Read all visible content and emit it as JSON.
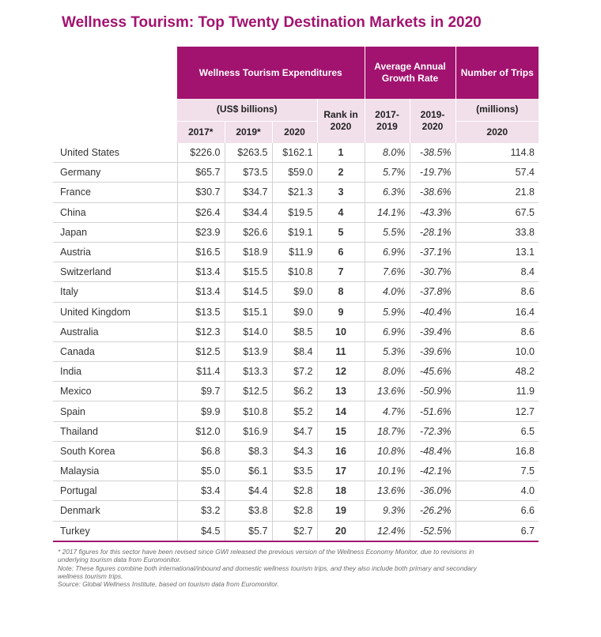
{
  "title": "Wellness Tourism: Top Twenty Destination Markets in 2020",
  "headers": {
    "expenditures": "Wellness Tourism Expenditures",
    "growth": "Average Annual Growth Rate",
    "trips": "Number of Trips",
    "usd_billions": "(US$ billions)",
    "rank": "Rank in 2020",
    "millions": "(millions)",
    "y2017": "2017*",
    "y2019": "2019*",
    "y2020": "2020",
    "g1719": "2017-2019",
    "g1920": "2019-2020",
    "trips2020": "2020"
  },
  "rows": [
    {
      "country": "United States",
      "e2017": "$226.0",
      "e2019": "$263.5",
      "e2020": "$162.1",
      "rank": "1",
      "g1719": "8.0%",
      "g1920": "-38.5%",
      "trips": "114.8"
    },
    {
      "country": "Germany",
      "e2017": "$65.7",
      "e2019": "$73.5",
      "e2020": "$59.0",
      "rank": "2",
      "g1719": "5.7%",
      "g1920": "-19.7%",
      "trips": "57.4"
    },
    {
      "country": "France",
      "e2017": "$30.7",
      "e2019": "$34.7",
      "e2020": "$21.3",
      "rank": "3",
      "g1719": "6.3%",
      "g1920": "-38.6%",
      "trips": "21.8"
    },
    {
      "country": "China",
      "e2017": "$26.4",
      "e2019": "$34.4",
      "e2020": "$19.5",
      "rank": "4",
      "g1719": "14.1%",
      "g1920": "-43.3%",
      "trips": "67.5"
    },
    {
      "country": "Japan",
      "e2017": "$23.9",
      "e2019": "$26.6",
      "e2020": "$19.1",
      "rank": "5",
      "g1719": "5.5%",
      "g1920": "-28.1%",
      "trips": "33.8"
    },
    {
      "country": "Austria",
      "e2017": "$16.5",
      "e2019": "$18.9",
      "e2020": "$11.9",
      "rank": "6",
      "g1719": "6.9%",
      "g1920": "-37.1%",
      "trips": "13.1"
    },
    {
      "country": "Switzerland",
      "e2017": "$13.4",
      "e2019": "$15.5",
      "e2020": "$10.8",
      "rank": "7",
      "g1719": "7.6%",
      "g1920": "-30.7%",
      "trips": "8.4"
    },
    {
      "country": "Italy",
      "e2017": "$13.4",
      "e2019": "$14.5",
      "e2020": "$9.0",
      "rank": "8",
      "g1719": "4.0%",
      "g1920": "-37.8%",
      "trips": "8.6"
    },
    {
      "country": "United Kingdom",
      "e2017": "$13.5",
      "e2019": "$15.1",
      "e2020": "$9.0",
      "rank": "9",
      "g1719": "5.9%",
      "g1920": "-40.4%",
      "trips": "16.4"
    },
    {
      "country": "Australia",
      "e2017": "$12.3",
      "e2019": "$14.0",
      "e2020": "$8.5",
      "rank": "10",
      "g1719": "6.9%",
      "g1920": "-39.4%",
      "trips": "8.6"
    },
    {
      "country": "Canada",
      "e2017": "$12.5",
      "e2019": "$13.9",
      "e2020": "$8.4",
      "rank": "11",
      "g1719": "5.3%",
      "g1920": "-39.6%",
      "trips": "10.0"
    },
    {
      "country": "India",
      "e2017": "$11.4",
      "e2019": "$13.3",
      "e2020": "$7.2",
      "rank": "12",
      "g1719": "8.0%",
      "g1920": "-45.6%",
      "trips": "48.2"
    },
    {
      "country": "Mexico",
      "e2017": "$9.7",
      "e2019": "$12.5",
      "e2020": "$6.2",
      "rank": "13",
      "g1719": "13.6%",
      "g1920": "-50.9%",
      "trips": "11.9"
    },
    {
      "country": "Spain",
      "e2017": "$9.9",
      "e2019": "$10.8",
      "e2020": "$5.2",
      "rank": "14",
      "g1719": "4.7%",
      "g1920": "-51.6%",
      "trips": "12.7"
    },
    {
      "country": "Thailand",
      "e2017": "$12.0",
      "e2019": "$16.9",
      "e2020": "$4.7",
      "rank": "15",
      "g1719": "18.7%",
      "g1920": "-72.3%",
      "trips": "6.5"
    },
    {
      "country": "South Korea",
      "e2017": "$6.8",
      "e2019": "$8.3",
      "e2020": "$4.3",
      "rank": "16",
      "g1719": "10.8%",
      "g1920": "-48.4%",
      "trips": "16.8"
    },
    {
      "country": "Malaysia",
      "e2017": "$5.0",
      "e2019": "$6.1",
      "e2020": "$3.5",
      "rank": "17",
      "g1719": "10.1%",
      "g1920": "-42.1%",
      "trips": "7.5"
    },
    {
      "country": "Portugal",
      "e2017": "$3.4",
      "e2019": "$4.4",
      "e2020": "$2.8",
      "rank": "18",
      "g1719": "13.6%",
      "g1920": "-36.0%",
      "trips": "4.0"
    },
    {
      "country": "Denmark",
      "e2017": "$3.2",
      "e2019": "$3.8",
      "e2020": "$2.8",
      "rank": "19",
      "g1719": "9.3%",
      "g1920": "-26.2%",
      "trips": "6.6"
    },
    {
      "country": "Turkey",
      "e2017": "$4.5",
      "e2019": "$5.7",
      "e2020": "$2.7",
      "rank": "20",
      "g1719": "12.4%",
      "g1920": "-52.5%",
      "trips": "6.7"
    }
  ],
  "footnotes": [
    "* 2017 figures for this sector have been revised since GWI released the previous version of the Wellness Economy Monitor, due to revisions in underlying tourism data from Euromonitor.",
    "Note: These figures combine both international/inbound and domestic wellness tourism trips, and they also include both primary and secondary wellness tourism trips.",
    "Source: Global Wellness Institute, based on tourism data from Euromonitor."
  ],
  "colors": {
    "accent": "#a2136f",
    "subheader": "#f1dfea"
  }
}
